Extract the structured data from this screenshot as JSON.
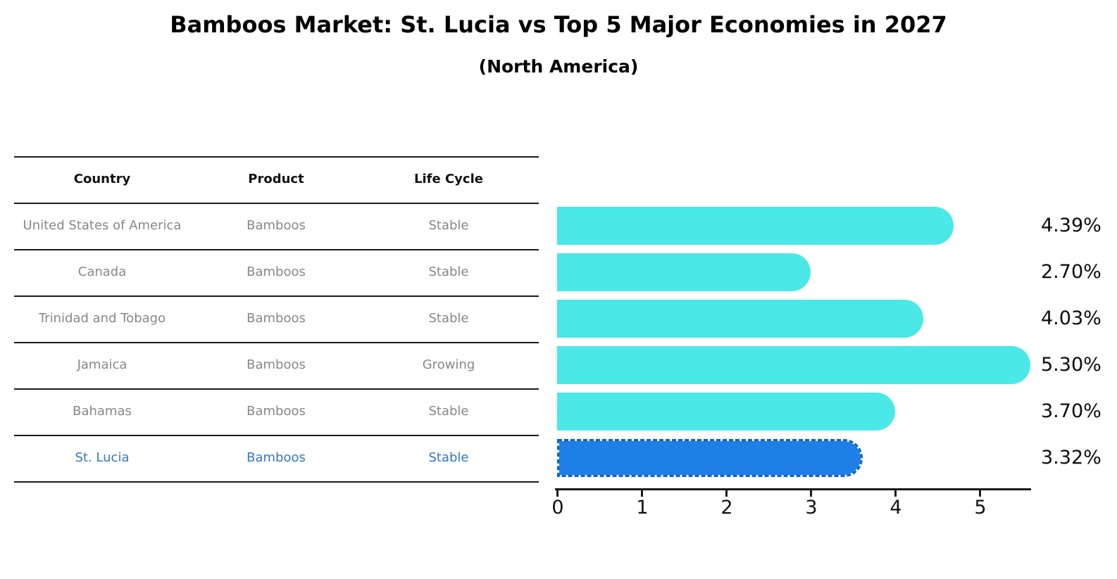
{
  "title": "Bamboos Market: St. Lucia vs Top 5 Major Economies in 2027",
  "subtitle": "(North America)",
  "table": {
    "headers": [
      "Country",
      "Product",
      "Life Cycle"
    ],
    "rows": [
      {
        "country": "United States of America",
        "product": "Bamboos",
        "life_cycle": "Stable"
      },
      {
        "country": "Canada",
        "product": "Bamboos",
        "life_cycle": "Stable"
      },
      {
        "country": "Trinidad and Tobago",
        "product": "Bamboos",
        "life_cycle": "Stable"
      },
      {
        "country": "Jamaica",
        "product": "Bamboos",
        "life_cycle": "Growing"
      },
      {
        "country": "Bahamas",
        "product": "Bamboos",
        "life_cycle": "Stable"
      },
      {
        "country": "St. Lucia",
        "product": "Bamboos",
        "life_cycle": "Stable"
      }
    ]
  },
  "chart_data": {
    "type": "bar",
    "orientation": "horizontal",
    "title": "Bamboos Market: St. Lucia vs Top 5 Major Economies in 2027",
    "subtitle": "(North America)",
    "categories": [
      "United States of America",
      "Canada",
      "Trinidad and Tobago",
      "Jamaica",
      "Bahamas",
      "St. Lucia"
    ],
    "values": [
      4.39,
      2.7,
      4.03,
      5.3,
      3.7,
      3.32
    ],
    "value_labels": [
      "4.39%",
      "2.70%",
      "4.03%",
      "5.30%",
      "3.70%",
      "3.32%"
    ],
    "x_ticks": [
      "0",
      "1",
      "2",
      "3",
      "4",
      "5"
    ],
    "xlim": [
      0,
      5.6
    ],
    "unit": "percent",
    "grid": false,
    "highlight_category": "St. Lucia",
    "colors": {
      "bar_default": "#4AE8E6",
      "bar_highlight": "#1E7FE6",
      "highlight_border": "#0E62C8",
      "highlight_text": "#3279BD",
      "table_text": "#878787"
    }
  }
}
